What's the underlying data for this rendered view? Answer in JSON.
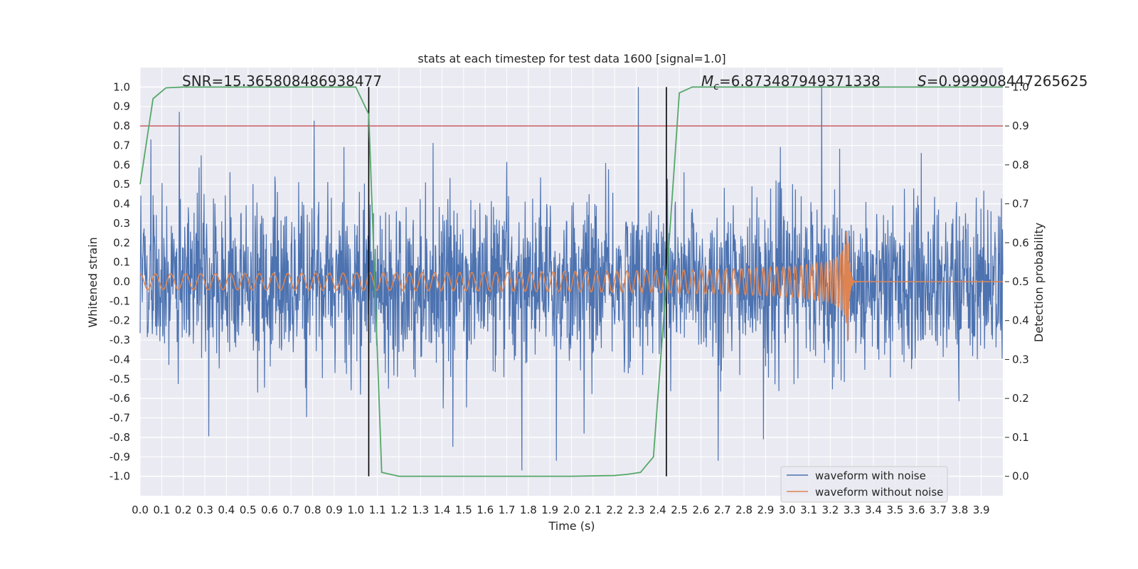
{
  "chart_data": {
    "type": "line",
    "title": "stats at each timestep for test data 1600 [signal=1.0]",
    "xlabel": "Time (s)",
    "ylabel": "Whitened strain",
    "y2label": "Detection probability",
    "xlim": [
      0.0,
      4.0
    ],
    "ylim": [
      -1.1,
      1.1
    ],
    "y2lim": [
      -0.05,
      1.05
    ],
    "x_ticks": [
      "0.0",
      "0.1",
      "0.2",
      "0.3",
      "0.4",
      "0.5",
      "0.6",
      "0.7",
      "0.8",
      "0.9",
      "1.0",
      "1.1",
      "1.2",
      "1.3",
      "1.4",
      "1.5",
      "1.6",
      "1.7",
      "1.8",
      "1.9",
      "2.0",
      "2.1",
      "2.2",
      "2.3",
      "2.4",
      "2.5",
      "2.6",
      "2.7",
      "2.8",
      "2.9",
      "3.0",
      "3.1",
      "3.2",
      "3.3",
      "3.4",
      "3.5",
      "3.6",
      "3.7",
      "3.8",
      "3.9"
    ],
    "y_ticks": [
      "1.0",
      "0.9",
      "0.8",
      "0.7",
      "0.6",
      "0.5",
      "0.4",
      "0.3",
      "0.2",
      "0.1",
      "0.0",
      "-0.1",
      "-0.2",
      "-0.3",
      "-0.4",
      "-0.5",
      "-0.6",
      "-0.7",
      "-0.8",
      "-0.9",
      "-1.0"
    ],
    "y2_ticks": [
      "1.0",
      "0.9",
      "0.8",
      "0.7",
      "0.6",
      "0.5",
      "0.4",
      "0.3",
      "0.2",
      "0.1",
      "0.0"
    ],
    "grid": true,
    "legend_position": "lower right",
    "annotations": {
      "snr": "SNR=15.365808486938477",
      "mc_symbol": "M",
      "mc_sub": "c",
      "mc_value": "=6.873487949371338",
      "s_symbol": "S",
      "s_value": "=0.999908447265625"
    },
    "threshold": {
      "y2": 0.9,
      "color": "#c44e52"
    },
    "vlines": [
      1.06,
      2.44
    ],
    "series": [
      {
        "name": "waveform with noise",
        "color": "#4c72b0",
        "description_values": {
          "noise_sigma": 0.2,
          "peaks": [
            [
              2.31,
              1.0
            ],
            [
              3.16,
              1.0
            ],
            [
              1.77,
              -0.97
            ],
            [
              2.68,
              -0.92
            ],
            [
              1.93,
              0.87
            ],
            [
              1.93,
              -0.92
            ],
            [
              2.89,
              -0.81
            ]
          ]
        }
      },
      {
        "name": "waveform without noise",
        "color": "#dd8452",
        "chirp": {
          "start_amplitude": 0.04,
          "peak_amplitude": 0.4,
          "merger_time": 3.28,
          "start_cycles_per_s": 28
        }
      },
      {
        "name": "detection probability",
        "color": "#55a868",
        "axis": "y2",
        "x": [
          0.0,
          0.06,
          0.12,
          0.2,
          0.4,
          0.6,
          0.8,
          1.0,
          1.06,
          1.12,
          1.2,
          1.4,
          1.6,
          1.8,
          2.0,
          2.2,
          2.26,
          2.32,
          2.38,
          2.44,
          2.5,
          2.56,
          2.8,
          3.0,
          3.5,
          4.0
        ],
        "y": [
          0.75,
          0.97,
          0.998,
          1.0,
          1.0,
          1.0,
          1.0,
          1.0,
          0.93,
          0.01,
          0.0,
          0.0,
          0.0,
          0.0,
          0.0,
          0.002,
          0.005,
          0.01,
          0.05,
          0.5,
          0.985,
          1.0,
          1.0,
          1.0,
          1.0,
          1.0
        ]
      }
    ]
  }
}
